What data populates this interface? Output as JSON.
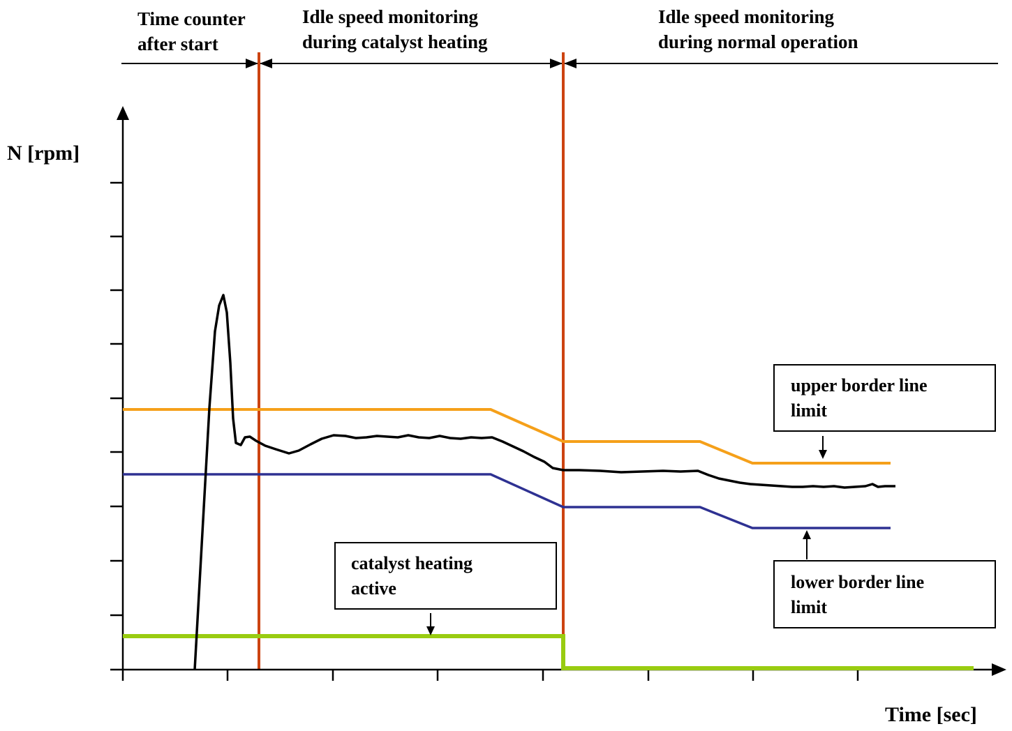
{
  "phases": [
    {
      "line1": "Time counter",
      "line2": "after start"
    },
    {
      "line1": "Idle speed monitoring",
      "line2": "during catalyst heating"
    },
    {
      "line1": "Idle speed monitoring",
      "line2": "during normal operation"
    }
  ],
  "axes": {
    "y_label": "N [rpm]",
    "x_label": "Time [sec]"
  },
  "callouts": {
    "upper": {
      "line1": "upper border line",
      "line2": "limit"
    },
    "lower": {
      "line1": "lower border line",
      "line2": "limit"
    },
    "catalyst": {
      "line1": "catalyst heating",
      "line2": "active"
    }
  },
  "colors": {
    "upper_limit": "#f5a01a",
    "lower_limit": "#2e3192",
    "catalyst_signal": "#99cc11",
    "phase_divider": "#cc4411",
    "engine_speed": "#000000",
    "axes": "#000000"
  }
}
